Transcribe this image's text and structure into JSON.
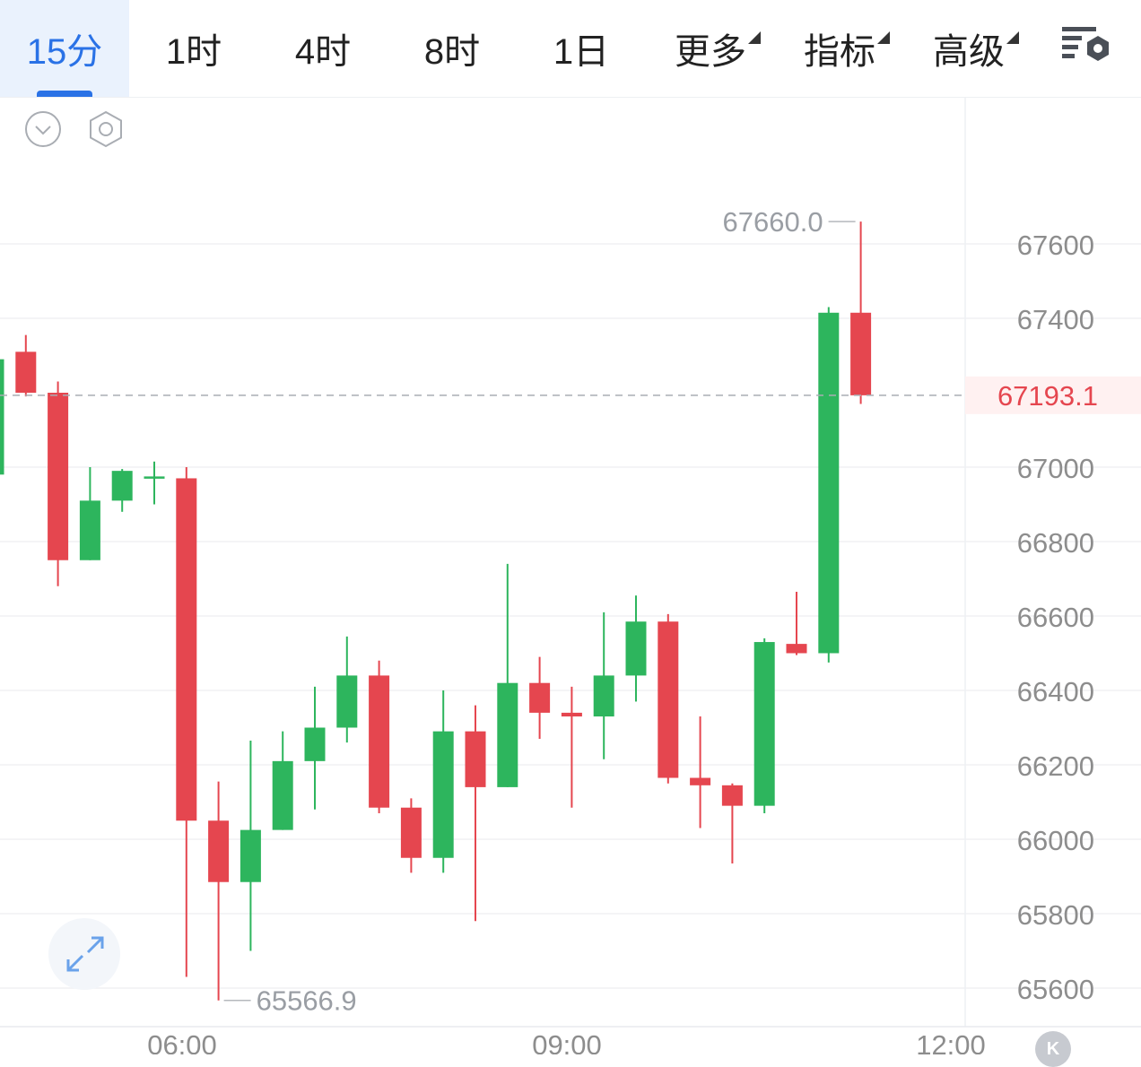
{
  "tabs": [
    {
      "id": "15m",
      "label": "15分",
      "active": true,
      "dropdown": false
    },
    {
      "id": "1h",
      "label": "1时",
      "active": false,
      "dropdown": false
    },
    {
      "id": "4h",
      "label": "4时",
      "active": false,
      "dropdown": false
    },
    {
      "id": "8h",
      "label": "8时",
      "active": false,
      "dropdown": false
    },
    {
      "id": "1d",
      "label": "1日",
      "active": false,
      "dropdown": false
    },
    {
      "id": "more",
      "label": "更多",
      "active": false,
      "dropdown": true
    },
    {
      "id": "indicators",
      "label": "指标",
      "active": false,
      "dropdown": true
    },
    {
      "id": "advanced",
      "label": "高级",
      "active": false,
      "dropdown": true
    }
  ],
  "icons": {
    "settings": "chart-settings-icon",
    "collapse": "chevron-down-circle-icon",
    "hex": "hexagon-settings-icon",
    "expand": "expand-arrows-icon",
    "k_badge": "K"
  },
  "colors": {
    "up": "#2db55d",
    "down": "#e5464f",
    "accent": "#2a72e6",
    "last_price": "#e5464f",
    "grid": "#f0f1f4",
    "axis_text": "#8d8d8d"
  },
  "chart_data": {
    "type": "candlestick",
    "interval": "15分",
    "y_ticks": [
      67600,
      67400,
      67000,
      66800,
      66600,
      66400,
      66200,
      66000,
      65800,
      65600
    ],
    "ylim": [
      65420,
      67900
    ],
    "x_ticks": [
      "06:00",
      "09:00",
      "12:00"
    ],
    "last_price": "67193.1",
    "max_label": "67660.0",
    "min_label": "65566.9",
    "candles": [
      {
        "o": 66980,
        "h": 67290,
        "l": 66980,
        "c": 67290
      },
      {
        "o": 67310,
        "h": 67355,
        "l": 67190,
        "c": 67200
      },
      {
        "o": 67200,
        "h": 67230,
        "l": 66680,
        "c": 66750
      },
      {
        "o": 66750,
        "h": 67000,
        "l": 66750,
        "c": 66910
      },
      {
        "o": 66910,
        "h": 66995,
        "l": 66880,
        "c": 66990
      },
      {
        "o": 66975,
        "h": 67015,
        "l": 66900,
        "c": 66975
      },
      {
        "o": 66970,
        "h": 67000,
        "l": 65630,
        "c": 66050
      },
      {
        "o": 66050,
        "h": 66155,
        "l": 65566.9,
        "c": 65885
      },
      {
        "o": 65885,
        "h": 66265,
        "l": 65700,
        "c": 66025
      },
      {
        "o": 66025,
        "h": 66290,
        "l": 66025,
        "c": 66210
      },
      {
        "o": 66210,
        "h": 66410,
        "l": 66080,
        "c": 66300
      },
      {
        "o": 66300,
        "h": 66545,
        "l": 66260,
        "c": 66440
      },
      {
        "o": 66440,
        "h": 66480,
        "l": 66070,
        "c": 66085
      },
      {
        "o": 66085,
        "h": 66110,
        "l": 65910,
        "c": 65950
      },
      {
        "o": 65950,
        "h": 66400,
        "l": 65910,
        "c": 66290
      },
      {
        "o": 66290,
        "h": 66360,
        "l": 65780,
        "c": 66140
      },
      {
        "o": 66140,
        "h": 66740,
        "l": 66140,
        "c": 66420
      },
      {
        "o": 66420,
        "h": 66490,
        "l": 66270,
        "c": 66340
      },
      {
        "o": 66340,
        "h": 66410,
        "l": 66085,
        "c": 66330
      },
      {
        "o": 66330,
        "h": 66610,
        "l": 66215,
        "c": 66440
      },
      {
        "o": 66440,
        "h": 66655,
        "l": 66370,
        "c": 66585
      },
      {
        "o": 66585,
        "h": 66605,
        "l": 66150,
        "c": 66165
      },
      {
        "o": 66165,
        "h": 66330,
        "l": 66030,
        "c": 66145
      },
      {
        "o": 66145,
        "h": 66150,
        "l": 65935,
        "c": 66090
      },
      {
        "o": 66090,
        "h": 66540,
        "l": 66070,
        "c": 66530
      },
      {
        "o": 66525,
        "h": 66665,
        "l": 66495,
        "c": 66500
      },
      {
        "o": 66500,
        "h": 67430,
        "l": 66475,
        "c": 67415
      },
      {
        "o": 67415,
        "h": 67660,
        "l": 67170,
        "c": 67193.1
      }
    ]
  }
}
